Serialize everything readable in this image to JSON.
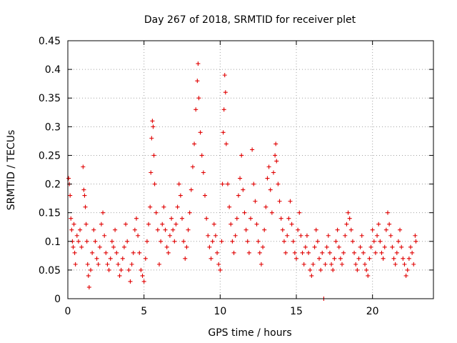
{
  "chart_data": {
    "type": "scatter",
    "title": "Day 267 of 2018, SRMTID for receiver plet",
    "xlabel": "GPS time / hours",
    "ylabel": "SRMTID / TECUs",
    "xlim": [
      0,
      24
    ],
    "ylim": [
      0,
      0.45
    ],
    "x_ticks": [
      "0",
      "5",
      "10",
      "15",
      "20"
    ],
    "y_ticks": [
      "0",
      "0.05",
      "0.1",
      "0.15",
      "0.2",
      "0.25",
      "0.3",
      "0.35",
      "0.4",
      "0.45"
    ],
    "grid": true,
    "marker": "+",
    "colors": {
      "series": "#e00000",
      "grid": "#a0a0a0",
      "axis": "#000000"
    },
    "series": [
      {
        "name": "SRMTID",
        "points": [
          [
            0.05,
            0.21
          ],
          [
            0.1,
            0.2
          ],
          [
            0.15,
            0.18
          ],
          [
            0.2,
            0.14
          ],
          [
            0.25,
            0.12
          ],
          [
            0.3,
            0.1
          ],
          [
            0.35,
            0.09
          ],
          [
            0.4,
            0.13
          ],
          [
            0.45,
            0.08
          ],
          [
            0.5,
            0.06
          ],
          [
            0.6,
            0.11
          ],
          [
            0.7,
            0.1
          ],
          [
            0.8,
            0.12
          ],
          [
            0.9,
            0.09
          ],
          [
            1.0,
            0.23
          ],
          [
            1.05,
            0.19
          ],
          [
            1.1,
            0.18
          ],
          [
            1.15,
            0.16
          ],
          [
            1.2,
            0.13
          ],
          [
            1.25,
            0.1
          ],
          [
            1.3,
            0.06
          ],
          [
            1.35,
            0.04
          ],
          [
            1.4,
            0.02
          ],
          [
            1.5,
            0.05
          ],
          [
            1.6,
            0.08
          ],
          [
            1.7,
            0.12
          ],
          [
            1.8,
            0.1
          ],
          [
            1.9,
            0.07
          ],
          [
            2.0,
            0.06
          ],
          [
            2.1,
            0.09
          ],
          [
            2.2,
            0.13
          ],
          [
            2.3,
            0.15
          ],
          [
            2.4,
            0.11
          ],
          [
            2.5,
            0.08
          ],
          [
            2.6,
            0.06
          ],
          [
            2.7,
            0.05
          ],
          [
            2.8,
            0.07
          ],
          [
            2.9,
            0.1
          ],
          [
            3.0,
            0.09
          ],
          [
            3.1,
            0.12
          ],
          [
            3.2,
            0.08
          ],
          [
            3.3,
            0.06
          ],
          [
            3.4,
            0.04
          ],
          [
            3.5,
            0.05
          ],
          [
            3.6,
            0.07
          ],
          [
            3.7,
            0.09
          ],
          [
            3.8,
            0.13
          ],
          [
            3.9,
            0.1
          ],
          [
            4.0,
            0.05
          ],
          [
            4.1,
            0.03
          ],
          [
            4.2,
            0.06
          ],
          [
            4.3,
            0.08
          ],
          [
            4.4,
            0.12
          ],
          [
            4.5,
            0.14
          ],
          [
            4.6,
            0.11
          ],
          [
            4.7,
            0.08
          ],
          [
            4.8,
            0.05
          ],
          [
            4.9,
            0.04
          ],
          [
            5.0,
            0.03
          ],
          [
            5.1,
            0.07
          ],
          [
            5.2,
            0.1
          ],
          [
            5.3,
            0.13
          ],
          [
            5.4,
            0.16
          ],
          [
            5.45,
            0.22
          ],
          [
            5.5,
            0.28
          ],
          [
            5.55,
            0.31
          ],
          [
            5.6,
            0.3
          ],
          [
            5.65,
            0.25
          ],
          [
            5.7,
            0.2
          ],
          [
            5.8,
            0.15
          ],
          [
            5.9,
            0.12
          ],
          [
            6.0,
            0.06
          ],
          [
            6.1,
            0.1
          ],
          [
            6.2,
            0.13
          ],
          [
            6.3,
            0.16
          ],
          [
            6.4,
            0.12
          ],
          [
            6.5,
            0.09
          ],
          [
            6.6,
            0.08
          ],
          [
            6.7,
            0.11
          ],
          [
            6.8,
            0.14
          ],
          [
            6.9,
            0.12
          ],
          [
            7.0,
            0.1
          ],
          [
            7.1,
            0.13
          ],
          [
            7.2,
            0.16
          ],
          [
            7.3,
            0.2
          ],
          [
            7.4,
            0.18
          ],
          [
            7.5,
            0.14
          ],
          [
            7.6,
            0.1
          ],
          [
            7.7,
            0.07
          ],
          [
            7.8,
            0.09
          ],
          [
            7.9,
            0.12
          ],
          [
            8.0,
            0.15
          ],
          [
            8.1,
            0.19
          ],
          [
            8.2,
            0.23
          ],
          [
            8.3,
            0.27
          ],
          [
            8.4,
            0.33
          ],
          [
            8.5,
            0.38
          ],
          [
            8.55,
            0.41
          ],
          [
            8.6,
            0.35
          ],
          [
            8.7,
            0.29
          ],
          [
            8.8,
            0.25
          ],
          [
            8.9,
            0.22
          ],
          [
            9.0,
            0.18
          ],
          [
            9.1,
            0.14
          ],
          [
            9.2,
            0.11
          ],
          [
            9.3,
            0.09
          ],
          [
            9.4,
            0.07
          ],
          [
            9.5,
            0.1
          ],
          [
            9.6,
            0.13
          ],
          [
            9.7,
            0.11
          ],
          [
            9.8,
            0.08
          ],
          [
            9.9,
            0.06
          ],
          [
            10.0,
            0.05
          ],
          [
            10.1,
            0.1
          ],
          [
            10.15,
            0.2
          ],
          [
            10.2,
            0.29
          ],
          [
            10.25,
            0.33
          ],
          [
            10.3,
            0.39
          ],
          [
            10.35,
            0.36
          ],
          [
            10.4,
            0.27
          ],
          [
            10.5,
            0.2
          ],
          [
            10.6,
            0.16
          ],
          [
            10.7,
            0.13
          ],
          [
            10.8,
            0.1
          ],
          [
            10.9,
            0.08
          ],
          [
            11.0,
            0.11
          ],
          [
            11.1,
            0.14
          ],
          [
            11.2,
            0.18
          ],
          [
            11.3,
            0.21
          ],
          [
            11.4,
            0.25
          ],
          [
            11.5,
            0.19
          ],
          [
            11.6,
            0.15
          ],
          [
            11.7,
            0.12
          ],
          [
            11.8,
            0.1
          ],
          [
            11.9,
            0.08
          ],
          [
            12.0,
            0.14
          ],
          [
            12.1,
            0.26
          ],
          [
            12.2,
            0.2
          ],
          [
            12.3,
            0.17
          ],
          [
            12.4,
            0.13
          ],
          [
            12.5,
            0.1
          ],
          [
            12.6,
            0.08
          ],
          [
            12.7,
            0.06
          ],
          [
            12.8,
            0.09
          ],
          [
            12.9,
            0.12
          ],
          [
            13.0,
            0.16
          ],
          [
            13.1,
            0.21
          ],
          [
            13.2,
            0.23
          ],
          [
            13.3,
            0.19
          ],
          [
            13.4,
            0.15
          ],
          [
            13.5,
            0.22
          ],
          [
            13.6,
            0.25
          ],
          [
            13.65,
            0.27
          ],
          [
            13.7,
            0.24
          ],
          [
            13.8,
            0.2
          ],
          [
            13.9,
            0.17
          ],
          [
            14.0,
            0.14
          ],
          [
            14.1,
            0.12
          ],
          [
            14.2,
            0.1
          ],
          [
            14.3,
            0.08
          ],
          [
            14.4,
            0.11
          ],
          [
            14.5,
            0.14
          ],
          [
            14.6,
            0.17
          ],
          [
            14.7,
            0.13
          ],
          [
            14.8,
            0.1
          ],
          [
            14.9,
            0.08
          ],
          [
            15.0,
            0.07
          ],
          [
            15.1,
            0.12
          ],
          [
            15.2,
            0.15
          ],
          [
            15.3,
            0.11
          ],
          [
            15.4,
            0.08
          ],
          [
            15.5,
            0.06
          ],
          [
            15.6,
            0.09
          ],
          [
            15.7,
            0.11
          ],
          [
            15.8,
            0.08
          ],
          [
            15.9,
            0.05
          ],
          [
            16.0,
            0.04
          ],
          [
            16.1,
            0.06
          ],
          [
            16.2,
            0.09
          ],
          [
            16.3,
            0.12
          ],
          [
            16.4,
            0.1
          ],
          [
            16.5,
            0.07
          ],
          [
            16.6,
            0.05
          ],
          [
            16.7,
            0.08
          ],
          [
            16.8,
            0.0
          ],
          [
            16.9,
            0.06
          ],
          [
            17.0,
            0.09
          ],
          [
            17.1,
            0.11
          ],
          [
            17.2,
            0.08
          ],
          [
            17.3,
            0.06
          ],
          [
            17.4,
            0.05
          ],
          [
            17.5,
            0.07
          ],
          [
            17.6,
            0.1
          ],
          [
            17.7,
            0.12
          ],
          [
            17.8,
            0.09
          ],
          [
            17.9,
            0.07
          ],
          [
            18.0,
            0.06
          ],
          [
            18.1,
            0.08
          ],
          [
            18.2,
            0.11
          ],
          [
            18.3,
            0.13
          ],
          [
            18.4,
            0.15
          ],
          [
            18.5,
            0.14
          ],
          [
            18.6,
            0.12
          ],
          [
            18.7,
            0.1
          ],
          [
            18.8,
            0.08
          ],
          [
            18.9,
            0.06
          ],
          [
            19.0,
            0.05
          ],
          [
            19.1,
            0.07
          ],
          [
            19.2,
            0.09
          ],
          [
            19.3,
            0.11
          ],
          [
            19.4,
            0.08
          ],
          [
            19.5,
            0.06
          ],
          [
            19.6,
            0.05
          ],
          [
            19.7,
            0.04
          ],
          [
            19.8,
            0.07
          ],
          [
            19.9,
            0.09
          ],
          [
            20.0,
            0.12
          ],
          [
            20.1,
            0.1
          ],
          [
            20.2,
            0.08
          ],
          [
            20.3,
            0.11
          ],
          [
            20.4,
            0.13
          ],
          [
            20.5,
            0.1
          ],
          [
            20.6,
            0.08
          ],
          [
            20.7,
            0.07
          ],
          [
            20.8,
            0.09
          ],
          [
            20.9,
            0.12
          ],
          [
            21.0,
            0.15
          ],
          [
            21.1,
            0.13
          ],
          [
            21.2,
            0.11
          ],
          [
            21.3,
            0.09
          ],
          [
            21.4,
            0.07
          ],
          [
            21.5,
            0.06
          ],
          [
            21.6,
            0.08
          ],
          [
            21.7,
            0.1
          ],
          [
            21.8,
            0.12
          ],
          [
            21.9,
            0.09
          ],
          [
            22.0,
            0.07
          ],
          [
            22.1,
            0.06
          ],
          [
            22.2,
            0.04
          ],
          [
            22.3,
            0.05
          ],
          [
            22.4,
            0.07
          ],
          [
            22.5,
            0.09
          ],
          [
            22.6,
            0.08
          ],
          [
            22.7,
            0.06
          ],
          [
            22.8,
            0.11
          ],
          [
            22.85,
            0.1
          ]
        ]
      }
    ]
  }
}
